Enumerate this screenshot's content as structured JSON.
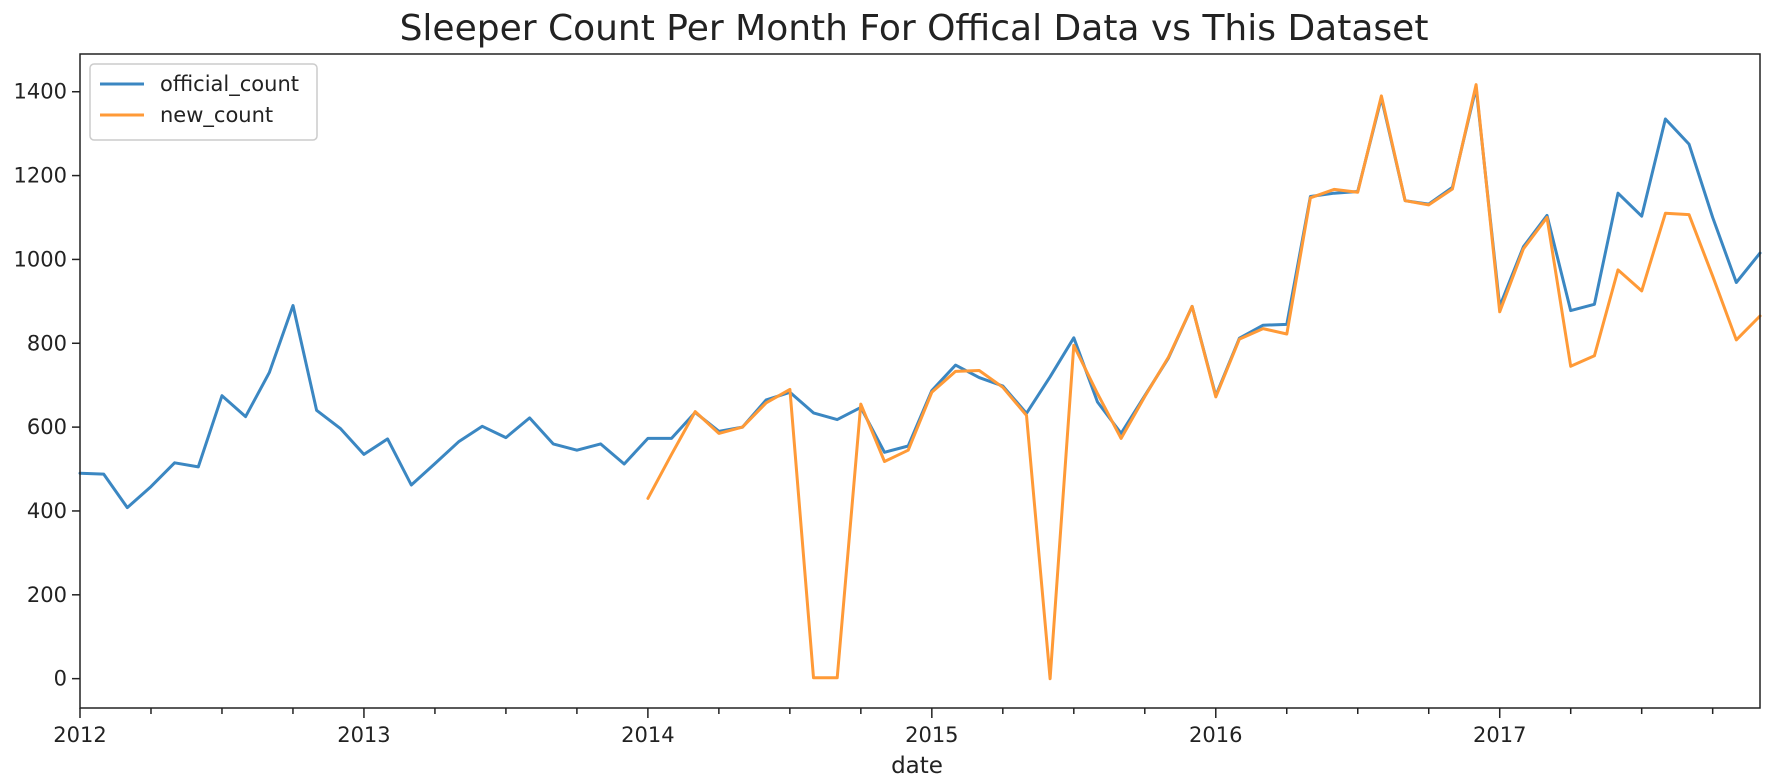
{
  "chart_data": {
    "type": "line",
    "title": "Sleeper Count Per Month For Offical Data vs This Dataset",
    "xlabel": "date",
    "ylabel": "",
    "x_start": "2012-01",
    "x_end": "2017-12",
    "xlim": [
      "2012-01",
      "2017-12"
    ],
    "ylim": [
      -70,
      1490
    ],
    "x_tick_labels": [
      "2012",
      "2013",
      "2014",
      "2015",
      "2016",
      "2017"
    ],
    "y_ticks": [
      0,
      200,
      400,
      600,
      800,
      1000,
      1200,
      1400
    ],
    "y_tick_labels": [
      "0",
      "200",
      "400",
      "600",
      "800",
      "1000",
      "1200",
      "1400"
    ],
    "grid": false,
    "legend_position": "top-left",
    "series": [
      {
        "name": "official_count",
        "color": "#3b87c2",
        "x_start": "2012-01",
        "values": [
          490,
          488,
          408,
          458,
          515,
          505,
          675,
          625,
          730,
          890,
          640,
          597,
          535,
          572,
          462,
          513,
          565,
          602,
          575,
          622,
          560,
          545,
          560,
          512,
          573,
          573,
          635,
          590,
          600,
          665,
          683,
          634,
          618,
          647,
          540,
          555,
          687,
          748,
          718,
          698,
          633,
          720,
          813,
          660,
          585,
          675,
          765,
          888,
          675,
          812,
          843,
          845,
          1150,
          1158,
          1162,
          1385,
          1140,
          1132,
          1172,
          1410,
          888,
          1030,
          1105,
          878,
          893,
          1158,
          1103,
          1335,
          1275,
          1100,
          945,
          1015
        ]
      },
      {
        "name": "new_count",
        "color": "#ff9a37",
        "x_start": "2014-01",
        "values": [
          430,
          535,
          637,
          585,
          600,
          658,
          690,
          2,
          2,
          655,
          518,
          545,
          683,
          733,
          735,
          695,
          628,
          0,
          795,
          680,
          573,
          673,
          767,
          888,
          672,
          810,
          835,
          822,
          1147,
          1167,
          1160,
          1390,
          1140,
          1130,
          1168,
          1417,
          875,
          1025,
          1100,
          745,
          770,
          975,
          925,
          1110,
          1107,
          960,
          808,
          865
        ]
      }
    ]
  }
}
